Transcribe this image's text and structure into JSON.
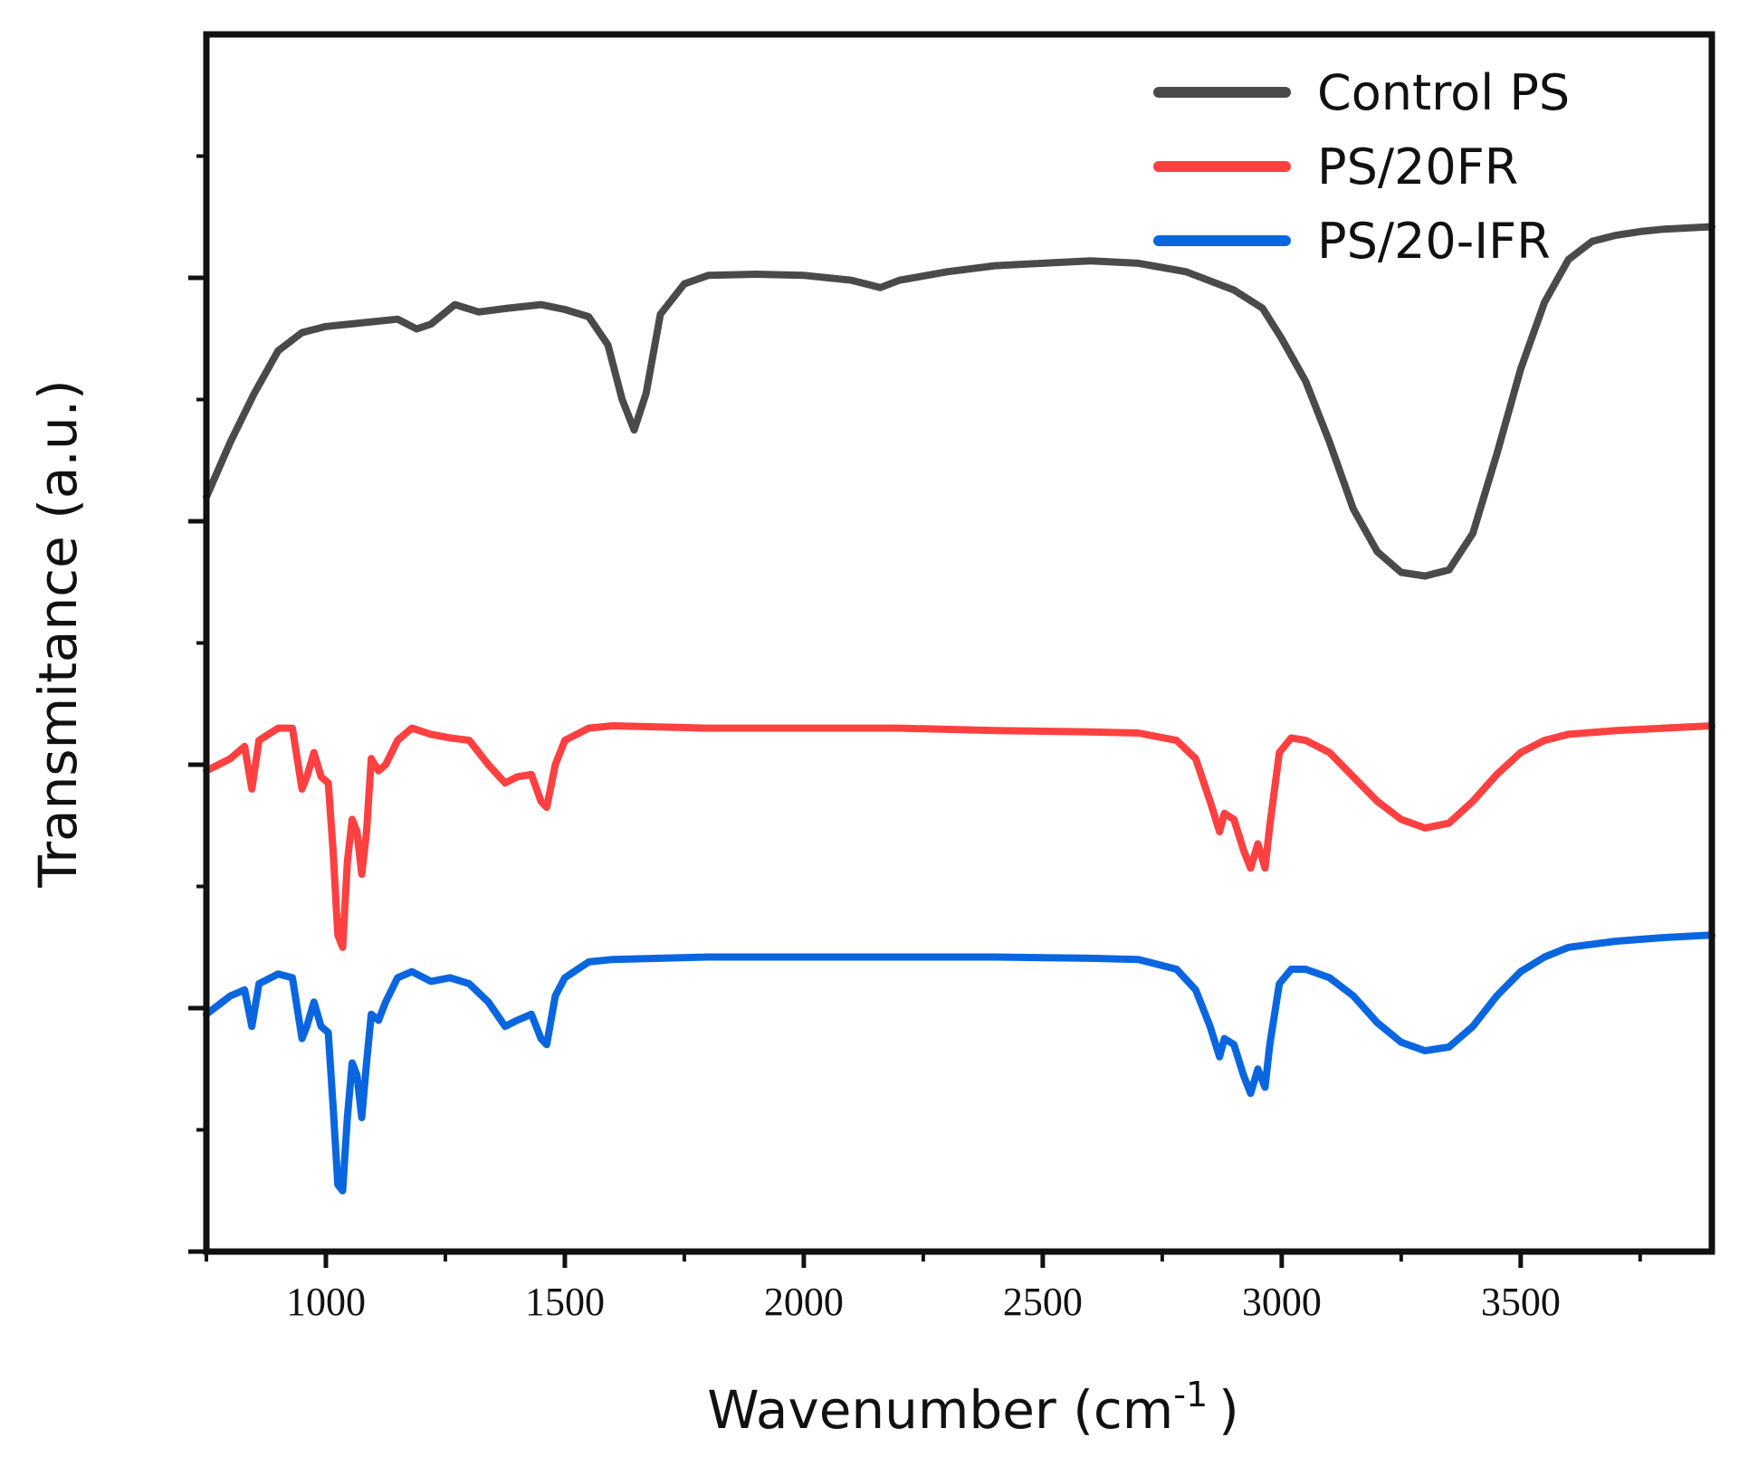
{
  "chart_data": {
    "type": "line",
    "title": "",
    "xlabel": "Wavenumber (cm",
    "xlabel_superscript": "-1",
    "xlabel_close": ")",
    "ylabel": "Transmitance (a.u.)",
    "xlim": [
      750,
      3900
    ],
    "ylim": [
      0,
      10
    ],
    "grid": false,
    "legend_position": "top-right",
    "x_ticks": [
      1000,
      1500,
      2000,
      2500,
      3000,
      3500
    ],
    "y_major_ticks": [
      0,
      2,
      4,
      6,
      8
    ],
    "y_minor_ticks": [
      1,
      3,
      5,
      7,
      9
    ],
    "series": [
      {
        "name": "Control PS",
        "color": "#4a4a4a",
        "points": [
          [
            750,
            6.2
          ],
          [
            800,
            6.65
          ],
          [
            850,
            7.05
          ],
          [
            900,
            7.4
          ],
          [
            950,
            7.55
          ],
          [
            1000,
            7.6
          ],
          [
            1050,
            7.62
          ],
          [
            1100,
            7.64
          ],
          [
            1150,
            7.66
          ],
          [
            1190,
            7.58
          ],
          [
            1220,
            7.62
          ],
          [
            1270,
            7.78
          ],
          [
            1320,
            7.72
          ],
          [
            1380,
            7.75
          ],
          [
            1450,
            7.78
          ],
          [
            1500,
            7.74
          ],
          [
            1550,
            7.68
          ],
          [
            1590,
            7.45
          ],
          [
            1620,
            7.0
          ],
          [
            1645,
            6.75
          ],
          [
            1670,
            7.05
          ],
          [
            1700,
            7.7
          ],
          [
            1750,
            7.95
          ],
          [
            1800,
            8.02
          ],
          [
            1900,
            8.03
          ],
          [
            2000,
            8.02
          ],
          [
            2100,
            7.98
          ],
          [
            2160,
            7.92
          ],
          [
            2200,
            7.98
          ],
          [
            2300,
            8.05
          ],
          [
            2400,
            8.1
          ],
          [
            2500,
            8.12
          ],
          [
            2600,
            8.14
          ],
          [
            2700,
            8.12
          ],
          [
            2800,
            8.05
          ],
          [
            2900,
            7.9
          ],
          [
            2960,
            7.75
          ],
          [
            3000,
            7.5
          ],
          [
            3050,
            7.15
          ],
          [
            3100,
            6.65
          ],
          [
            3150,
            6.1
          ],
          [
            3200,
            5.75
          ],
          [
            3250,
            5.58
          ],
          [
            3300,
            5.55
          ],
          [
            3350,
            5.6
          ],
          [
            3400,
            5.9
          ],
          [
            3450,
            6.55
          ],
          [
            3500,
            7.25
          ],
          [
            3550,
            7.8
          ],
          [
            3600,
            8.15
          ],
          [
            3650,
            8.3
          ],
          [
            3700,
            8.35
          ],
          [
            3750,
            8.38
          ],
          [
            3800,
            8.4
          ],
          [
            3900,
            8.42
          ]
        ]
      },
      {
        "name": "PS/20FR",
        "color": "#ff4040",
        "points": [
          [
            750,
            3.95
          ],
          [
            800,
            4.05
          ],
          [
            830,
            4.15
          ],
          [
            845,
            3.8
          ],
          [
            860,
            4.2
          ],
          [
            900,
            4.3
          ],
          [
            930,
            4.3
          ],
          [
            950,
            3.8
          ],
          [
            960,
            3.9
          ],
          [
            975,
            4.1
          ],
          [
            990,
            3.9
          ],
          [
            1005,
            3.85
          ],
          [
            1015,
            3.3
          ],
          [
            1025,
            2.6
          ],
          [
            1035,
            2.5
          ],
          [
            1045,
            3.2
          ],
          [
            1055,
            3.55
          ],
          [
            1065,
            3.45
          ],
          [
            1075,
            3.1
          ],
          [
            1085,
            3.45
          ],
          [
            1095,
            4.05
          ],
          [
            1110,
            3.95
          ],
          [
            1125,
            4.0
          ],
          [
            1150,
            4.2
          ],
          [
            1180,
            4.3
          ],
          [
            1220,
            4.25
          ],
          [
            1260,
            4.22
          ],
          [
            1300,
            4.2
          ],
          [
            1340,
            4.0
          ],
          [
            1375,
            3.85
          ],
          [
            1400,
            3.9
          ],
          [
            1430,
            3.92
          ],
          [
            1450,
            3.7
          ],
          [
            1462,
            3.65
          ],
          [
            1480,
            4.0
          ],
          [
            1500,
            4.2
          ],
          [
            1550,
            4.3
          ],
          [
            1600,
            4.32
          ],
          [
            1800,
            4.3
          ],
          [
            2000,
            4.3
          ],
          [
            2200,
            4.3
          ],
          [
            2400,
            4.28
          ],
          [
            2600,
            4.27
          ],
          [
            2700,
            4.26
          ],
          [
            2780,
            4.2
          ],
          [
            2820,
            4.05
          ],
          [
            2850,
            3.7
          ],
          [
            2870,
            3.45
          ],
          [
            2880,
            3.6
          ],
          [
            2900,
            3.55
          ],
          [
            2920,
            3.3
          ],
          [
            2935,
            3.15
          ],
          [
            2950,
            3.35
          ],
          [
            2965,
            3.15
          ],
          [
            2975,
            3.5
          ],
          [
            2995,
            4.1
          ],
          [
            3020,
            4.22
          ],
          [
            3050,
            4.2
          ],
          [
            3100,
            4.1
          ],
          [
            3150,
            3.9
          ],
          [
            3200,
            3.7
          ],
          [
            3250,
            3.55
          ],
          [
            3300,
            3.48
          ],
          [
            3350,
            3.52
          ],
          [
            3400,
            3.7
          ],
          [
            3450,
            3.92
          ],
          [
            3500,
            4.1
          ],
          [
            3550,
            4.2
          ],
          [
            3600,
            4.25
          ],
          [
            3700,
            4.28
          ],
          [
            3800,
            4.3
          ],
          [
            3900,
            4.32
          ]
        ]
      },
      {
        "name": "PS/20-IFR",
        "color": "#0a66e0",
        "points": [
          [
            750,
            1.95
          ],
          [
            800,
            2.1
          ],
          [
            830,
            2.15
          ],
          [
            845,
            1.85
          ],
          [
            860,
            2.2
          ],
          [
            900,
            2.28
          ],
          [
            930,
            2.25
          ],
          [
            950,
            1.75
          ],
          [
            960,
            1.85
          ],
          [
            975,
            2.05
          ],
          [
            990,
            1.85
          ],
          [
            1005,
            1.8
          ],
          [
            1015,
            1.2
          ],
          [
            1025,
            0.55
          ],
          [
            1035,
            0.5
          ],
          [
            1045,
            1.1
          ],
          [
            1055,
            1.55
          ],
          [
            1065,
            1.45
          ],
          [
            1075,
            1.1
          ],
          [
            1085,
            1.55
          ],
          [
            1095,
            1.95
          ],
          [
            1110,
            1.9
          ],
          [
            1125,
            2.05
          ],
          [
            1150,
            2.25
          ],
          [
            1180,
            2.3
          ],
          [
            1220,
            2.22
          ],
          [
            1260,
            2.25
          ],
          [
            1300,
            2.2
          ],
          [
            1340,
            2.05
          ],
          [
            1375,
            1.85
          ],
          [
            1400,
            1.9
          ],
          [
            1430,
            1.95
          ],
          [
            1450,
            1.75
          ],
          [
            1462,
            1.7
          ],
          [
            1480,
            2.1
          ],
          [
            1500,
            2.25
          ],
          [
            1550,
            2.38
          ],
          [
            1600,
            2.4
          ],
          [
            1800,
            2.42
          ],
          [
            2000,
            2.42
          ],
          [
            2200,
            2.42
          ],
          [
            2400,
            2.42
          ],
          [
            2600,
            2.41
          ],
          [
            2700,
            2.4
          ],
          [
            2780,
            2.32
          ],
          [
            2820,
            2.15
          ],
          [
            2850,
            1.85
          ],
          [
            2870,
            1.6
          ],
          [
            2880,
            1.75
          ],
          [
            2900,
            1.7
          ],
          [
            2920,
            1.45
          ],
          [
            2935,
            1.3
          ],
          [
            2950,
            1.5
          ],
          [
            2965,
            1.35
          ],
          [
            2975,
            1.7
          ],
          [
            2995,
            2.2
          ],
          [
            3020,
            2.32
          ],
          [
            3050,
            2.32
          ],
          [
            3100,
            2.25
          ],
          [
            3150,
            2.1
          ],
          [
            3200,
            1.88
          ],
          [
            3250,
            1.72
          ],
          [
            3300,
            1.65
          ],
          [
            3350,
            1.68
          ],
          [
            3400,
            1.85
          ],
          [
            3450,
            2.1
          ],
          [
            3500,
            2.3
          ],
          [
            3550,
            2.42
          ],
          [
            3600,
            2.5
          ],
          [
            3700,
            2.55
          ],
          [
            3800,
            2.58
          ],
          [
            3900,
            2.6
          ]
        ]
      }
    ]
  }
}
